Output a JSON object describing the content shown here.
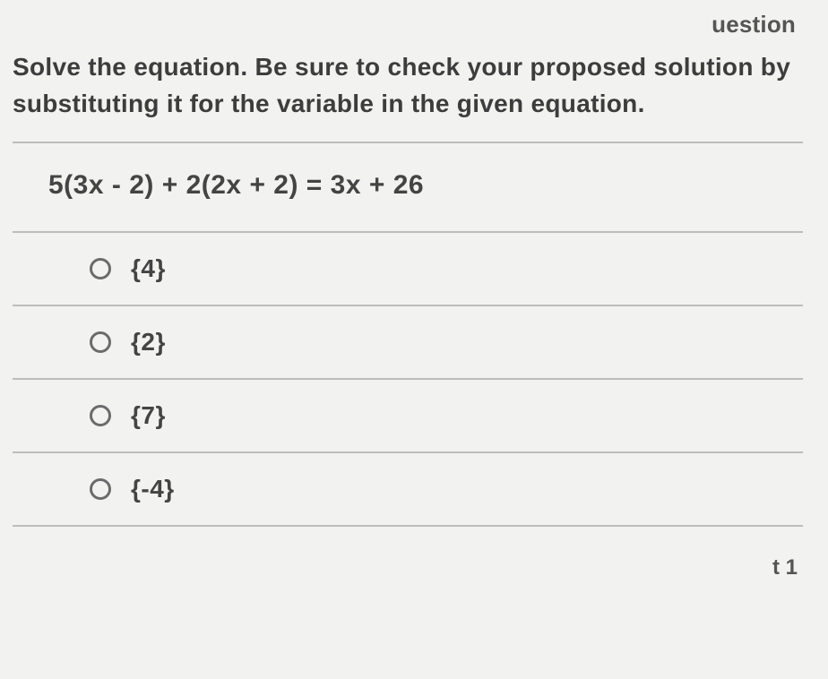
{
  "header": {
    "partial_label": "uestion"
  },
  "prompt": {
    "line": "Solve the equation. Be sure to check your proposed solution by substituting it for the variable in the given equation."
  },
  "equation": "5(3x - 2) + 2(2x + 2) = 3x + 26",
  "options": [
    {
      "label": "{4}",
      "selected": false
    },
    {
      "label": "{2}",
      "selected": false
    },
    {
      "label": "{7}",
      "selected": false
    },
    {
      "label": "{-4}",
      "selected": false
    }
  ],
  "footer": {
    "fragment": "t 1"
  },
  "colors": {
    "background": "#f2f2f0",
    "text": "#3d3d3d",
    "rule": "#bdbdbc",
    "radio_border": "#6b6b6b"
  },
  "typography": {
    "prompt_fontsize_pt": 21,
    "equation_fontsize_pt": 22,
    "option_fontsize_pt": 21,
    "font_weight_prompt": 700,
    "font_weight_options": 600
  }
}
